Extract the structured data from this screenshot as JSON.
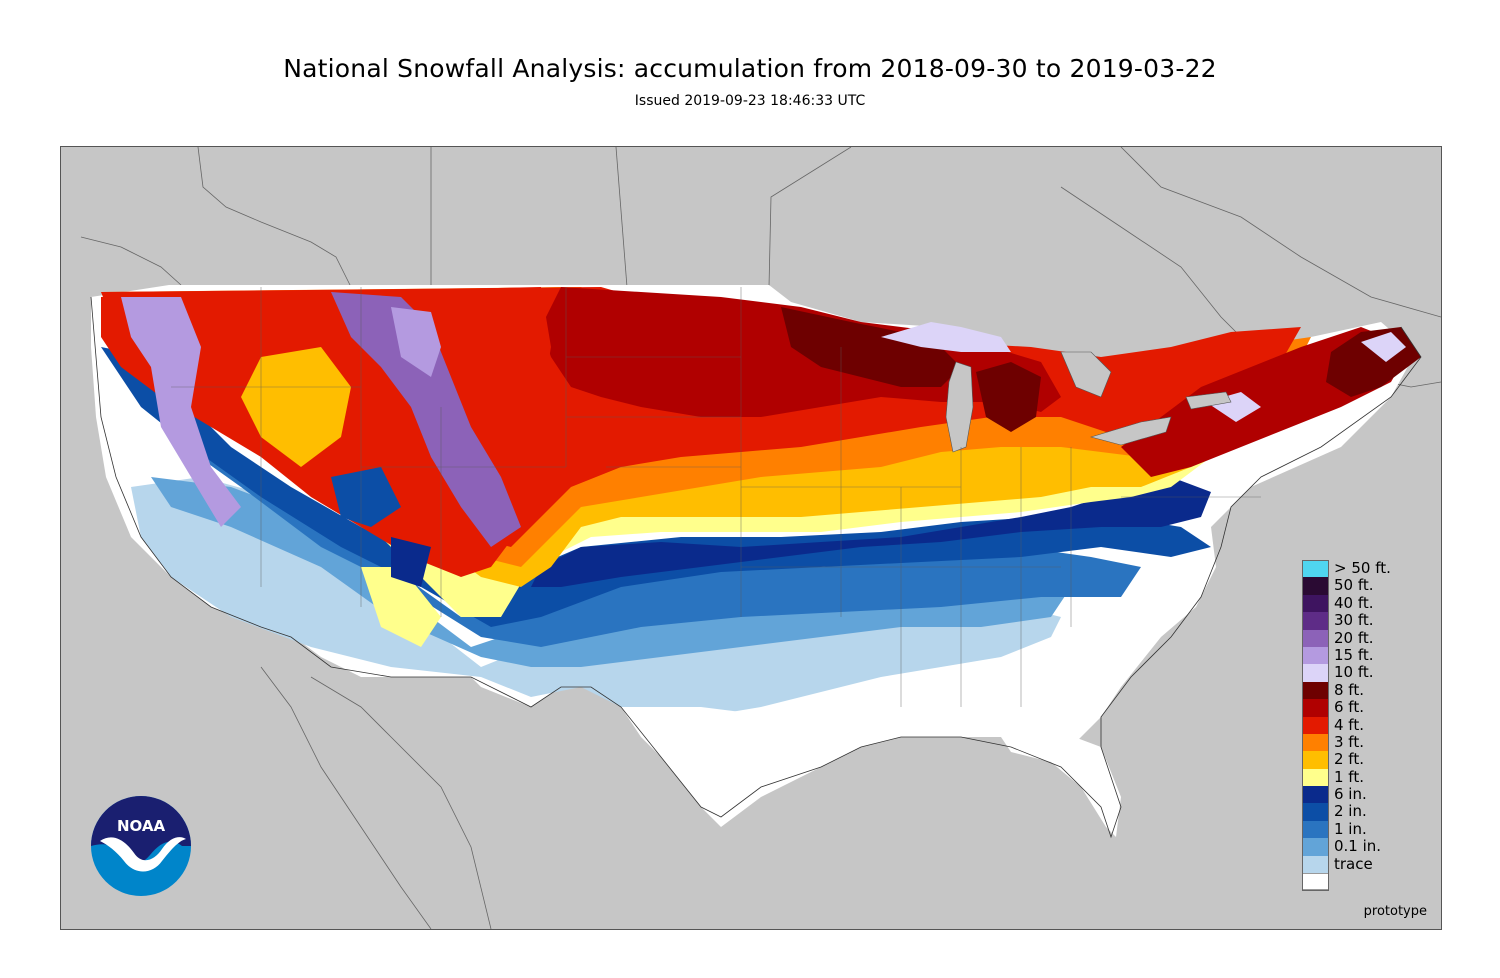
{
  "header": {
    "title": "National Snowfall Analysis: accumulation from 2018-09-30 to 2019-03-22",
    "subtitle": "Issued 2019-09-23 18:46:33 UTC"
  },
  "map": {
    "background_color": "#c6c6c6",
    "land_color": "#ffffff",
    "prototype_label": "prototype"
  },
  "logo": {
    "text": "NOAA"
  },
  "legend": {
    "items": [
      {
        "label": "> 50 ft.",
        "color": "#4fd6f0"
      },
      {
        "label": "50 ft.",
        "color": "#2a0a33"
      },
      {
        "label": "40 ft.",
        "color": "#3e1460"
      },
      {
        "label": "30 ft.",
        "color": "#5e2c87"
      },
      {
        "label": "20 ft.",
        "color": "#8c62b8"
      },
      {
        "label": "15 ft.",
        "color": "#b49ae0"
      },
      {
        "label": "10 ft.",
        "color": "#dcd4f8"
      },
      {
        "label": "8 ft.",
        "color": "#6e0000"
      },
      {
        "label": "6 ft.",
        "color": "#b00000"
      },
      {
        "label": "4 ft.",
        "color": "#e31a00"
      },
      {
        "label": "3 ft.",
        "color": "#ff8000"
      },
      {
        "label": "2 ft.",
        "color": "#ffbe00"
      },
      {
        "label": "1 ft.",
        "color": "#ffff8c"
      },
      {
        "label": "6 in.",
        "color": "#0a2a8c"
      },
      {
        "label": "2 in.",
        "color": "#0c4ea6"
      },
      {
        "label": "1 in.",
        "color": "#2a74c0"
      },
      {
        "label": "0.1 in.",
        "color": "#62a4d8"
      },
      {
        "label": "trace",
        "color": "#b7d6ec"
      }
    ],
    "bottom_color": "#ffffff"
  }
}
